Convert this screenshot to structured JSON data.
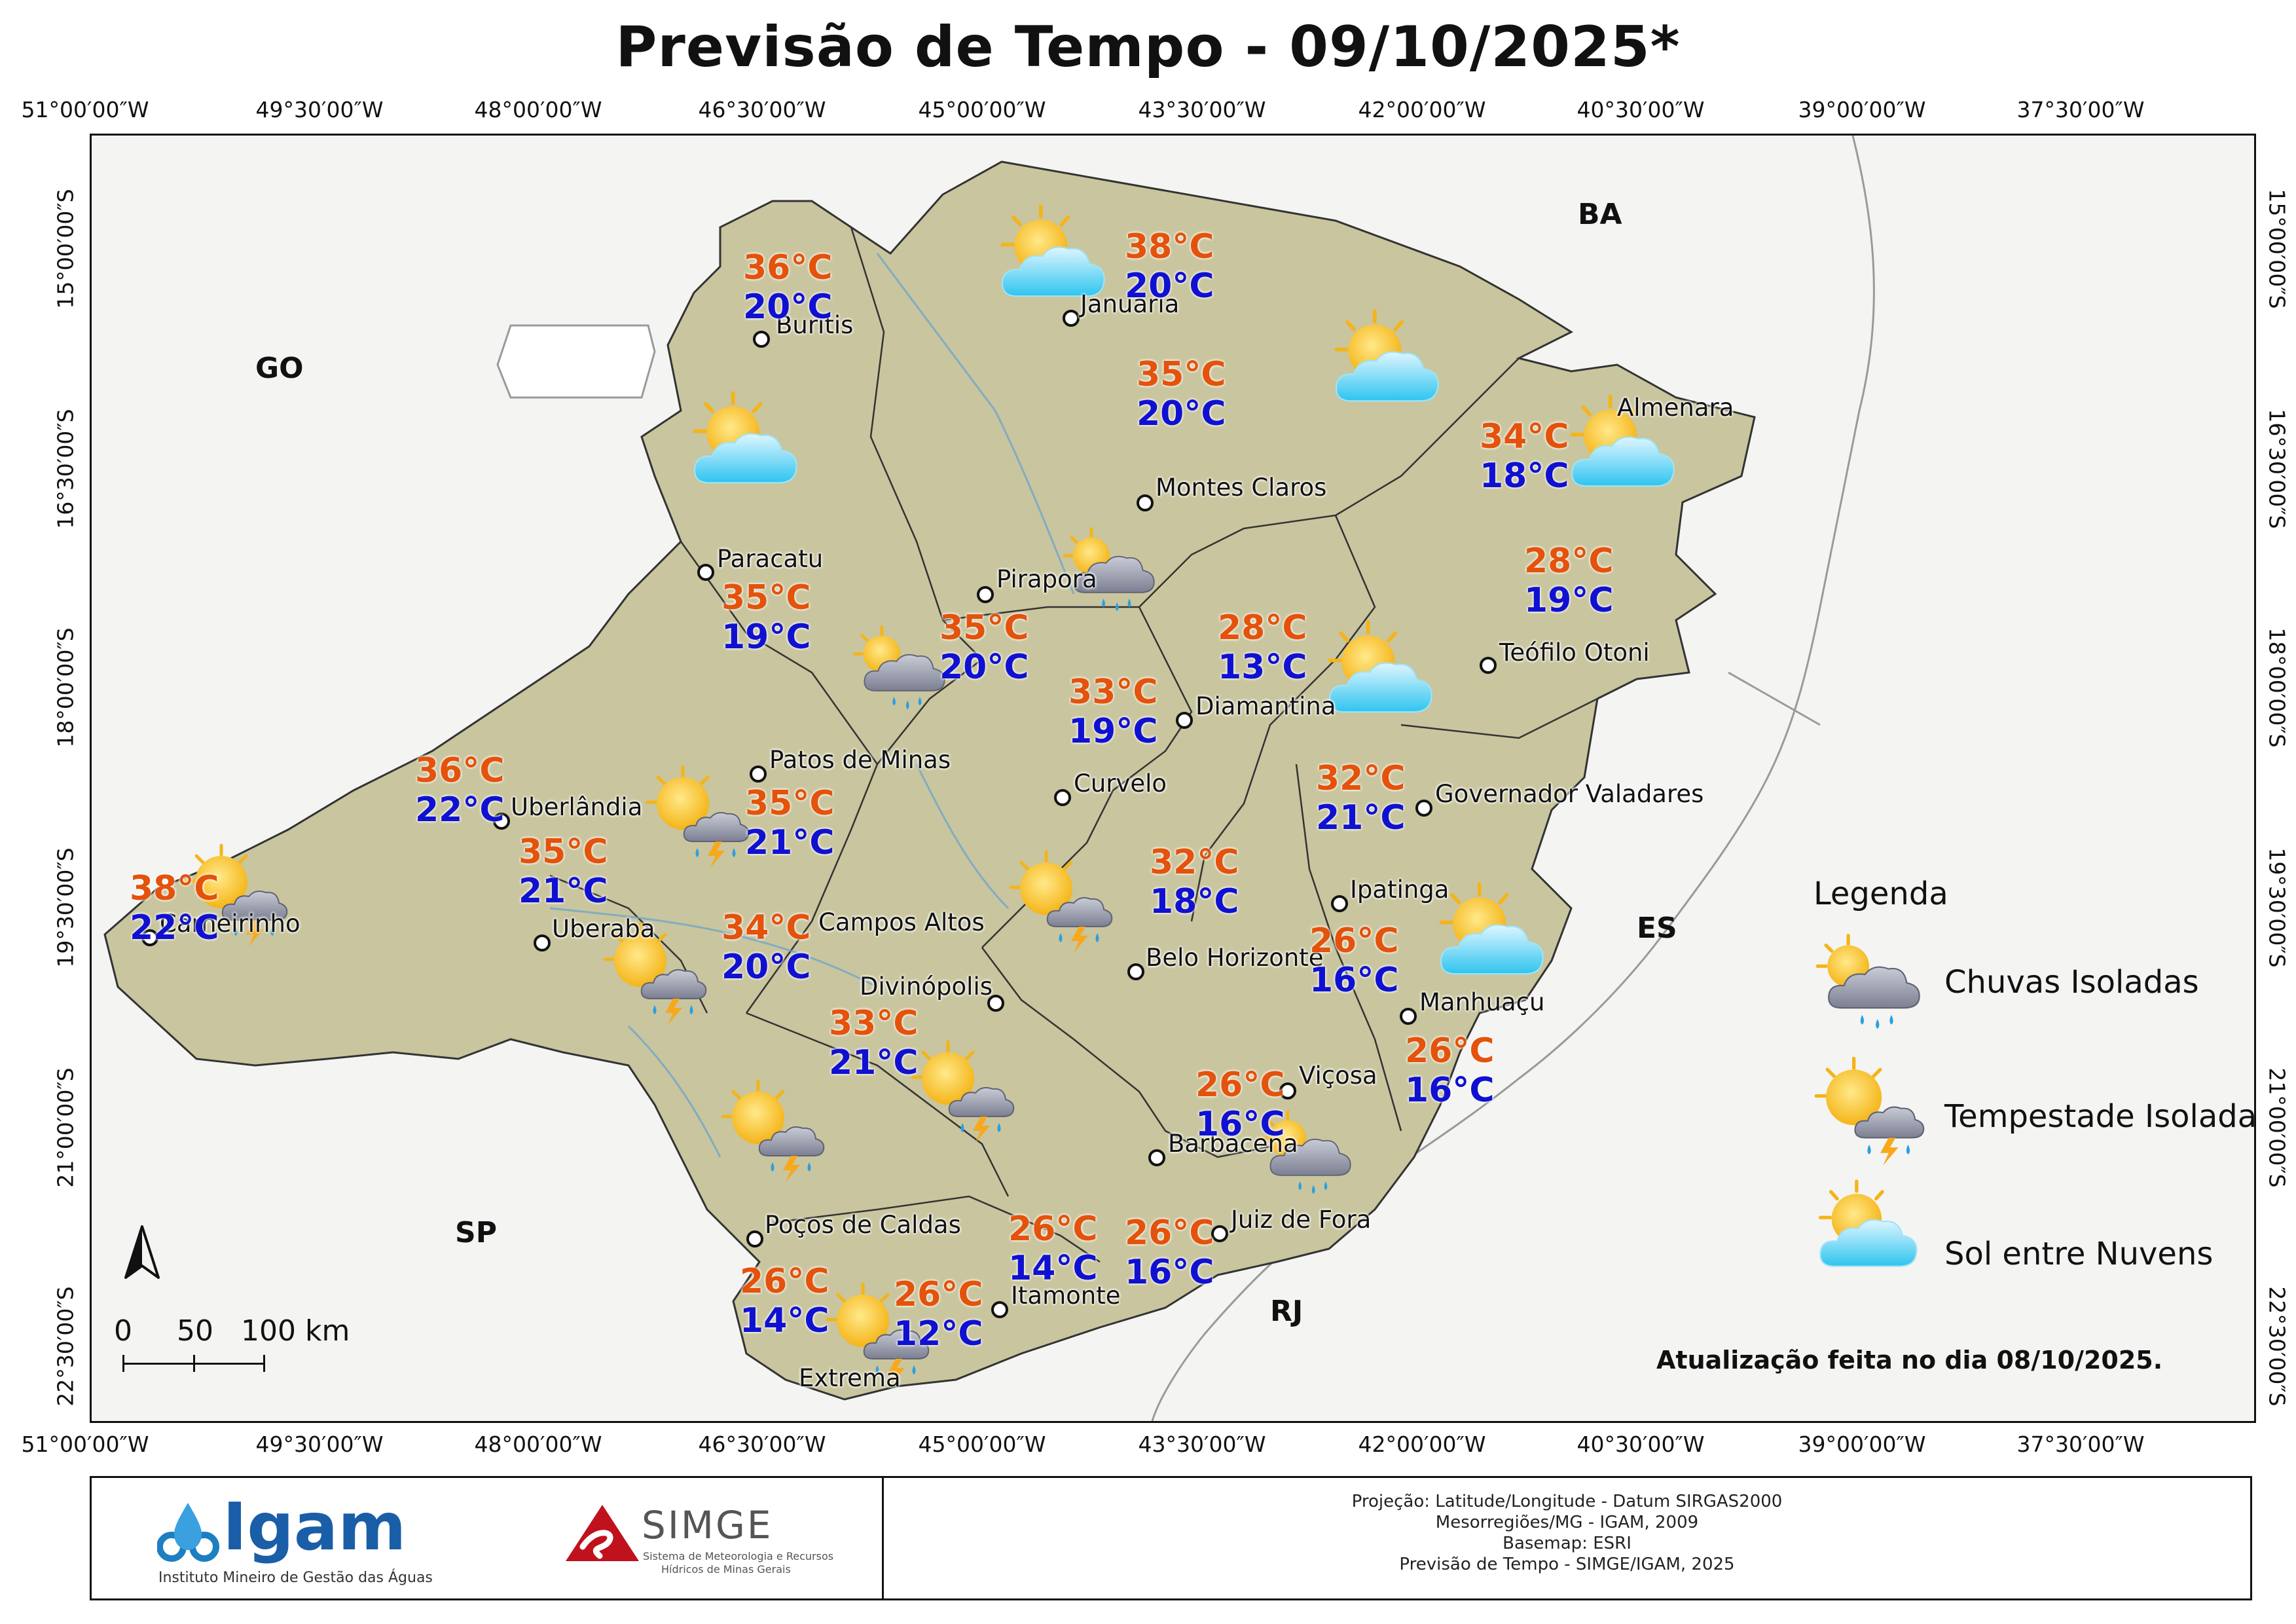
{
  "title": "Previsão de Tempo - 09/10/2025*",
  "coords_top": [
    "51°00′00″W",
    "49°30′00″W",
    "48°00′00″W",
    "46°30′00″W",
    "45°00′00″W",
    "43°30′00″W",
    "42°00′00″W",
    "40°30′00″W",
    "39°00′00″W",
    "37°30′00″W"
  ],
  "coords_left": [
    "15°00′00″S",
    "16°30′00″S",
    "18°00′00″S",
    "19°30′00″S",
    "21°00′00″S",
    "22°30′00″S"
  ],
  "states": {
    "go": "GO",
    "ba": "BA",
    "es": "ES",
    "sp": "SP",
    "rj": "RJ"
  },
  "cities": {
    "buritis": "Buritis",
    "januaria": "Januaria",
    "montes_claros": "Montes Claros",
    "almenara": "Almenara",
    "paracatu": "Paracatu",
    "pirapora": "Pirapora",
    "teofilo_otoni": "Teófilo Otoni",
    "diamantina": "Diamantina",
    "patos_de_minas": "Patos de Minas",
    "curvelo": "Curvelo",
    "governador_valadares": "Governador Valadares",
    "uberlandia": "Uberlândia",
    "ipatinga": "Ipatinga",
    "carneirinho": "Carneirinho",
    "uberaba": "Uberaba",
    "campos_altos": "Campos Altos",
    "belo_horizonte": "Belo Horizonte",
    "divinopolis": "Divinópolis",
    "manhuacu": "Manhuaçu",
    "vicosa": "Viçosa",
    "barbacena": "Barbacena",
    "pocos_de_caldas": "Poços de Caldas",
    "juiz_de_fora": "Juiz de Fora",
    "itamonte": "Itamonte",
    "extrema": "Extrema"
  },
  "temps": {
    "buritis": [
      "36°C",
      "20°C"
    ],
    "januaria": [
      "38°C",
      "20°C"
    ],
    "montes_claros": [
      "35°C",
      "20°C"
    ],
    "almenara": [
      "34°C",
      "18°C"
    ],
    "teofilo_otoni": [
      "28°C",
      "19°C"
    ],
    "paracatu": [
      "35°C",
      "19°C"
    ],
    "pirapora": [
      "35°C",
      "20°C"
    ],
    "diamantina": [
      "28°C",
      "13°C"
    ],
    "curvelo": [
      "33°C",
      "19°C"
    ],
    "governador_valadares": [
      "32°C",
      "21°C"
    ],
    "uberlandia": [
      "36°C",
      "22°C"
    ],
    "patos_de_minas": [
      "35°C",
      "21°C"
    ],
    "carneirinho": [
      "38°C",
      "22°C"
    ],
    "uberaba": [
      "35°C",
      "21°C"
    ],
    "campos_altos": [
      "34°C",
      "20°C"
    ],
    "belo_horizonte": [
      "32°C",
      "18°C"
    ],
    "ipatinga": [
      "26°C",
      "16°C"
    ],
    "divinopolis": [
      "33°C",
      "21°C"
    ],
    "manhuacu": [
      "26°C",
      "16°C"
    ],
    "vicosa": [
      "26°C",
      "16°C"
    ],
    "juiz_de_fora": [
      "26°C",
      "16°C"
    ],
    "itamonte": [
      "26°C",
      "14°C"
    ],
    "pocos_de_caldas": [
      "26°C",
      "14°C"
    ],
    "extrema": [
      "26°C",
      "12°C"
    ]
  },
  "legend": {
    "title": "Legenda",
    "items": [
      "Chuvas Isoladas",
      "Tempestade Isolada",
      "Sol entre Nuvens"
    ]
  },
  "update_note": "Atualização feita no dia 08/10/2025.",
  "scale": {
    "l0": "0",
    "l1": "50",
    "l2": "100 km"
  },
  "footer": {
    "igam": "Igam",
    "igam_sub": "Instituto Mineiro de Gestão das Águas",
    "simge": "SIMGE",
    "simge_sub1": "Sistema de Meteorologia e Recursos",
    "simge_sub2": "Hídricos de Minas Gerais",
    "credits": [
      "Projeção: Latitude/Longitude - Datum SIRGAS2000",
      "Mesorregiões/MG - IGAM, 2009",
      "Basemap: ESRI",
      "Previsão de Tempo - SIMGE/IGAM, 2025"
    ]
  },
  "colors": {
    "tmax": "#e4520b",
    "tmin": "#1011d0",
    "state_fill": "#c9c59e",
    "frame": "#111111"
  },
  "icons": [
    "sun-cloud-icon",
    "rain-cloud-icon",
    "storm-cloud-icon",
    "north-arrow-icon"
  ]
}
